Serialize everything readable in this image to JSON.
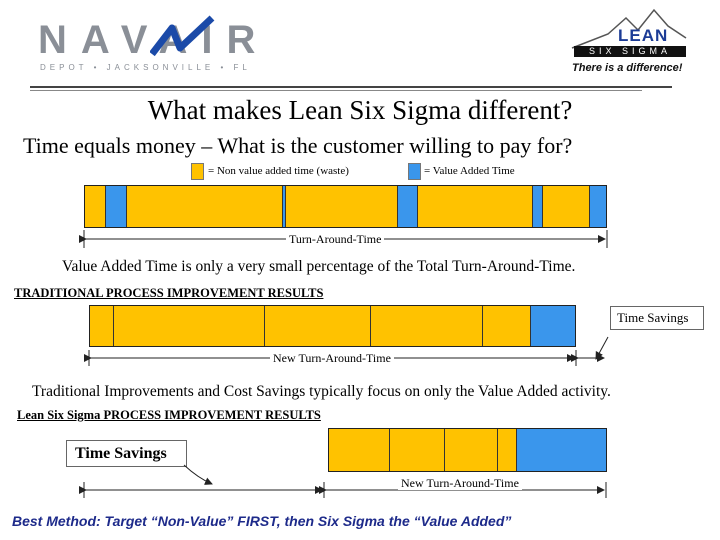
{
  "header": {
    "navair_wordmark": "NAVAIR",
    "navair_subtext": "DEPOT • JACKSONVILLE • FL",
    "lean_logo_top": "LEAN",
    "lean_logo_bottom": "SIX SIGMA",
    "tagline": "There is a difference!"
  },
  "title": "What makes Lean Six Sigma different?",
  "subtitle": "Time equals money – What is the customer willing to pay for?",
  "legend": {
    "non_value": "= Non value added time (waste)",
    "value": "= Value Added Time",
    "non_value_color": "#ffc200",
    "value_color": "#3a96ec"
  },
  "diagram1": {
    "segments": [
      {
        "kind": "yellow",
        "share": 0.04
      },
      {
        "kind": "blue",
        "share": 0.04
      },
      {
        "kind": "yellow",
        "share": 0.3
      },
      {
        "kind": "blue",
        "share": 0.005
      },
      {
        "kind": "yellow",
        "share": 0.215
      },
      {
        "kind": "blue",
        "share": 0.04
      },
      {
        "kind": "yellow",
        "share": 0.22
      },
      {
        "kind": "blue",
        "share": 0.02
      },
      {
        "kind": "yellow",
        "share": 0.09
      },
      {
        "kind": "blue",
        "share": 0.03
      }
    ],
    "label": "Turn-Around-Time"
  },
  "statement1": "Value Added Time is only a very small percentage of the Total Turn-Around-Time.",
  "section1_heading": "TRADITIONAL PROCESS IMPROVEMENT RESULTS",
  "diagram2": {
    "segments": [
      {
        "kind": "yellow",
        "share": 0.05
      },
      {
        "kind": "yellow",
        "share": 0.31
      },
      {
        "kind": "yellow",
        "share": 0.22
      },
      {
        "kind": "yellow",
        "share": 0.23
      },
      {
        "kind": "yellow",
        "share": 0.1
      },
      {
        "kind": "blue",
        "share": 0.09
      }
    ],
    "label": "New Turn-Around-Time",
    "callout": "Time Savings"
  },
  "statement2": "Traditional Improvements and Cost Savings typically focus on only the Value Added activity.",
  "section2_heading": "Lean Six Sigma PROCESS IMPROVEMENT RESULTS",
  "diagram3": {
    "segments": [
      {
        "kind": "yellow",
        "share": 0.22
      },
      {
        "kind": "yellow",
        "share": 0.2
      },
      {
        "kind": "yellow",
        "share": 0.19
      },
      {
        "kind": "yellow",
        "share": 0.07
      },
      {
        "kind": "blue",
        "share": 0.32
      }
    ],
    "label": "New Turn-Around-Time",
    "callout": "Time Savings"
  },
  "bottom_line": "Best Method:  Target “Non-Value”  FIRST, then Six Sigma the “Value Added”"
}
